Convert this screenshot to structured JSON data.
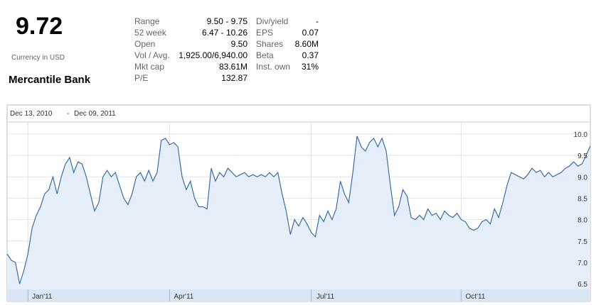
{
  "quote": {
    "price": "9.72",
    "currency": "Currency in USD",
    "company": "Mercantile Bank"
  },
  "stats": {
    "columns": [
      {
        "rows": [
          {
            "label": "Range",
            "value": "9.50 - 9.75"
          },
          {
            "label": "52 week",
            "value": "6.47 - 10.26"
          },
          {
            "label": "Open",
            "value": "9.50"
          },
          {
            "label": "Vol / Avg.",
            "value": "1,925.00/6,940.00"
          },
          {
            "label": "Mkt cap",
            "value": "83.61M"
          },
          {
            "label": "P/E",
            "value": "132.87"
          }
        ]
      },
      {
        "rows": [
          {
            "label": "Div/yield",
            "value": "-"
          },
          {
            "label": "EPS",
            "value": "0.07"
          },
          {
            "label": "Shares",
            "value": "8.60M"
          },
          {
            "label": "Beta",
            "value": "0.37"
          },
          {
            "label": "Inst. own",
            "value": "31%"
          }
        ]
      }
    ]
  },
  "chart_data": {
    "type": "line",
    "date_range": {
      "start": "Dec 13, 2010",
      "separator": "-",
      "end": "Dec 09, 2011"
    },
    "series": [
      {
        "name": "Mercantile Bank",
        "color": "#3a6ea5",
        "fill": "#e6eff9",
        "values": [
          7.2,
          7.05,
          7.0,
          6.5,
          6.8,
          7.2,
          7.8,
          8.1,
          8.3,
          8.6,
          8.7,
          9.0,
          8.6,
          9.0,
          9.3,
          9.45,
          9.1,
          9.35,
          9.3,
          9.0,
          8.6,
          8.2,
          8.4,
          9.0,
          9.15,
          9.0,
          9.1,
          8.8,
          8.5,
          8.35,
          8.6,
          9.0,
          9.1,
          8.9,
          9.15,
          8.9,
          9.1,
          9.85,
          9.9,
          9.75,
          9.8,
          9.7,
          9.0,
          8.7,
          8.9,
          8.5,
          8.3,
          8.3,
          8.25,
          9.2,
          8.9,
          9.1,
          9.0,
          9.2,
          9.1,
          9.0,
          9.05,
          9.1,
          9.0,
          9.05,
          9.0,
          9.05,
          9.0,
          9.1,
          9.0,
          9.1,
          8.6,
          8.2,
          7.65,
          8.0,
          7.85,
          8.05,
          7.9,
          7.7,
          7.6,
          8.1,
          7.95,
          8.2,
          8.0,
          8.25,
          8.9,
          8.6,
          8.4,
          9.1,
          9.95,
          9.7,
          9.6,
          9.8,
          9.9,
          9.7,
          9.9,
          9.6,
          8.8,
          8.1,
          8.3,
          8.7,
          8.55,
          8.05,
          8.0,
          8.1,
          8.0,
          8.25,
          8.1,
          8.15,
          8.0,
          8.2,
          8.1,
          8.05,
          8.15,
          8.0,
          7.95,
          7.8,
          7.75,
          7.8,
          7.95,
          8.0,
          7.9,
          8.25,
          8.05,
          8.4,
          8.8,
          9.1,
          9.05,
          9.0,
          8.95,
          9.05,
          9.2,
          9.1,
          9.15,
          9.0,
          9.1,
          9.0,
          9.05,
          9.1,
          9.2,
          9.25,
          9.35,
          9.25,
          9.3,
          9.5,
          9.72
        ]
      }
    ],
    "xlim": [
      0,
      140
    ],
    "xticks": [
      {
        "value": 5,
        "label": "Jan'11"
      },
      {
        "value": 39,
        "label": "Apr'11"
      },
      {
        "value": 73,
        "label": "Jul'11"
      },
      {
        "value": 109,
        "label": "Oct'11"
      }
    ],
    "ylim": [
      6.37,
      10.28
    ],
    "yticks": [
      6.5,
      7,
      7.5,
      8,
      8.5,
      9,
      9.5,
      10
    ],
    "ytick_labels": [
      "6.5",
      "7.0",
      "7.5",
      "8.0",
      "8.5",
      "9.0",
      "9.5",
      "10.0"
    ],
    "grid": true
  }
}
